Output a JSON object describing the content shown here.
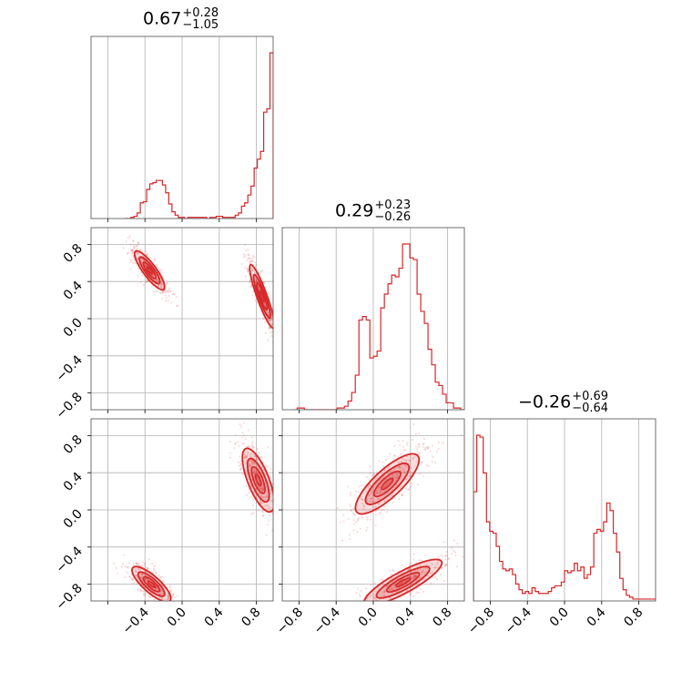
{
  "chart_data": {
    "type": "scatter",
    "subtype": "corner-plot",
    "color": "#d62728",
    "grid": true,
    "range": [
      -0.98,
      0.98
    ],
    "ticks": [
      -0.8,
      -0.4,
      0.0,
      0.4,
      0.8
    ],
    "tick_labels": [
      "−0.8",
      "−0.4",
      "0.0",
      "0.4",
      "0.8"
    ],
    "row_tick_labels": {
      "row1": [
        "−0.8",
        "−0.4",
        "0.0",
        "0.4",
        "0.8"
      ],
      "row2": [
        "−0.8",
        "−0.4",
        "0.0",
        "0.4",
        "0.8"
      ]
    },
    "x_tick_labels": {
      "col0": [
        "−0.4",
        "0.0",
        "0.4",
        "0.8"
      ],
      "col1": [
        "−0.8",
        "−0.4",
        "0.0",
        "0.4",
        "0.8"
      ],
      "col2": [
        "−0.8",
        "−0.4",
        "0.0",
        "0.4",
        "0.8"
      ]
    },
    "parameters": [
      {
        "title_value": "0.67",
        "title_plus": "+0.28",
        "title_minus": "−1.05",
        "hist_range": [
          -0.62,
          0.98
        ],
        "hist": [
          0,
          0,
          1,
          2,
          5,
          14,
          15,
          26,
          31,
          32,
          34,
          34,
          30,
          23,
          13,
          6,
          3,
          1,
          1,
          0,
          1,
          1,
          1,
          1,
          1,
          1,
          0,
          1,
          1,
          2,
          2,
          1,
          1,
          1,
          1,
          3,
          5,
          11,
          14,
          21,
          29,
          45,
          53,
          60,
          95,
          98,
          148
        ]
      },
      {
        "title_value": "0.29",
        "title_plus": "+0.23",
        "title_minus": "−0.26",
        "hist_range": [
          -0.82,
          0.98
        ],
        "hist": [
          1,
          1,
          0,
          0,
          0,
          0,
          0,
          0,
          0,
          0,
          0,
          1,
          1,
          2,
          5,
          10,
          20,
          52,
          54,
          52,
          30,
          31,
          34,
          59,
          67,
          73,
          78,
          77,
          82,
          96,
          96,
          88,
          87,
          67,
          57,
          50,
          35,
          26,
          16,
          14,
          9,
          4,
          4,
          1,
          1,
          0
        ]
      },
      {
        "title_value": "−0.26",
        "title_plus": "+0.69",
        "title_minus": "−0.64",
        "hist_range": [
          -0.98,
          0.98
        ],
        "hist": [
          58,
          88,
          87,
          68,
          42,
          37,
          36,
          29,
          21,
          17,
          16,
          17,
          14,
          9,
          6,
          4,
          5,
          4,
          7,
          5,
          4,
          4,
          4,
          5,
          7,
          8,
          8,
          10,
          16,
          15,
          16,
          20,
          16,
          18,
          12,
          14,
          18,
          36,
          38,
          37,
          42,
          52,
          48,
          36,
          26,
          12,
          6,
          3,
          2,
          1,
          1,
          1,
          1,
          1,
          1,
          1
        ]
      }
    ],
    "pairs": [
      {
        "row": 1,
        "col": 0,
        "clusters": [
          {
            "mx": -0.35,
            "my": 0.52,
            "sx": 0.085,
            "sy": 0.11,
            "rho": -0.85
          },
          {
            "mx": 0.86,
            "my": 0.24,
            "sx": 0.07,
            "sy": 0.18,
            "rho": -0.9
          }
        ]
      },
      {
        "row": 2,
        "col": 0,
        "clusters": [
          {
            "mx": 0.82,
            "my": 0.32,
            "sx": 0.09,
            "sy": 0.18,
            "rho": -0.7
          },
          {
            "mx": -0.33,
            "my": -0.8,
            "sx": 0.11,
            "sy": 0.1,
            "rho": -0.8
          }
        ]
      },
      {
        "row": 2,
        "col": 1,
        "clusters": [
          {
            "mx": 0.15,
            "my": 0.28,
            "sx": 0.18,
            "sy": 0.17,
            "rho": 0.8
          },
          {
            "mx": 0.32,
            "my": -0.78,
            "sx": 0.22,
            "sy": 0.13,
            "rho": 0.85
          }
        ]
      }
    ]
  }
}
